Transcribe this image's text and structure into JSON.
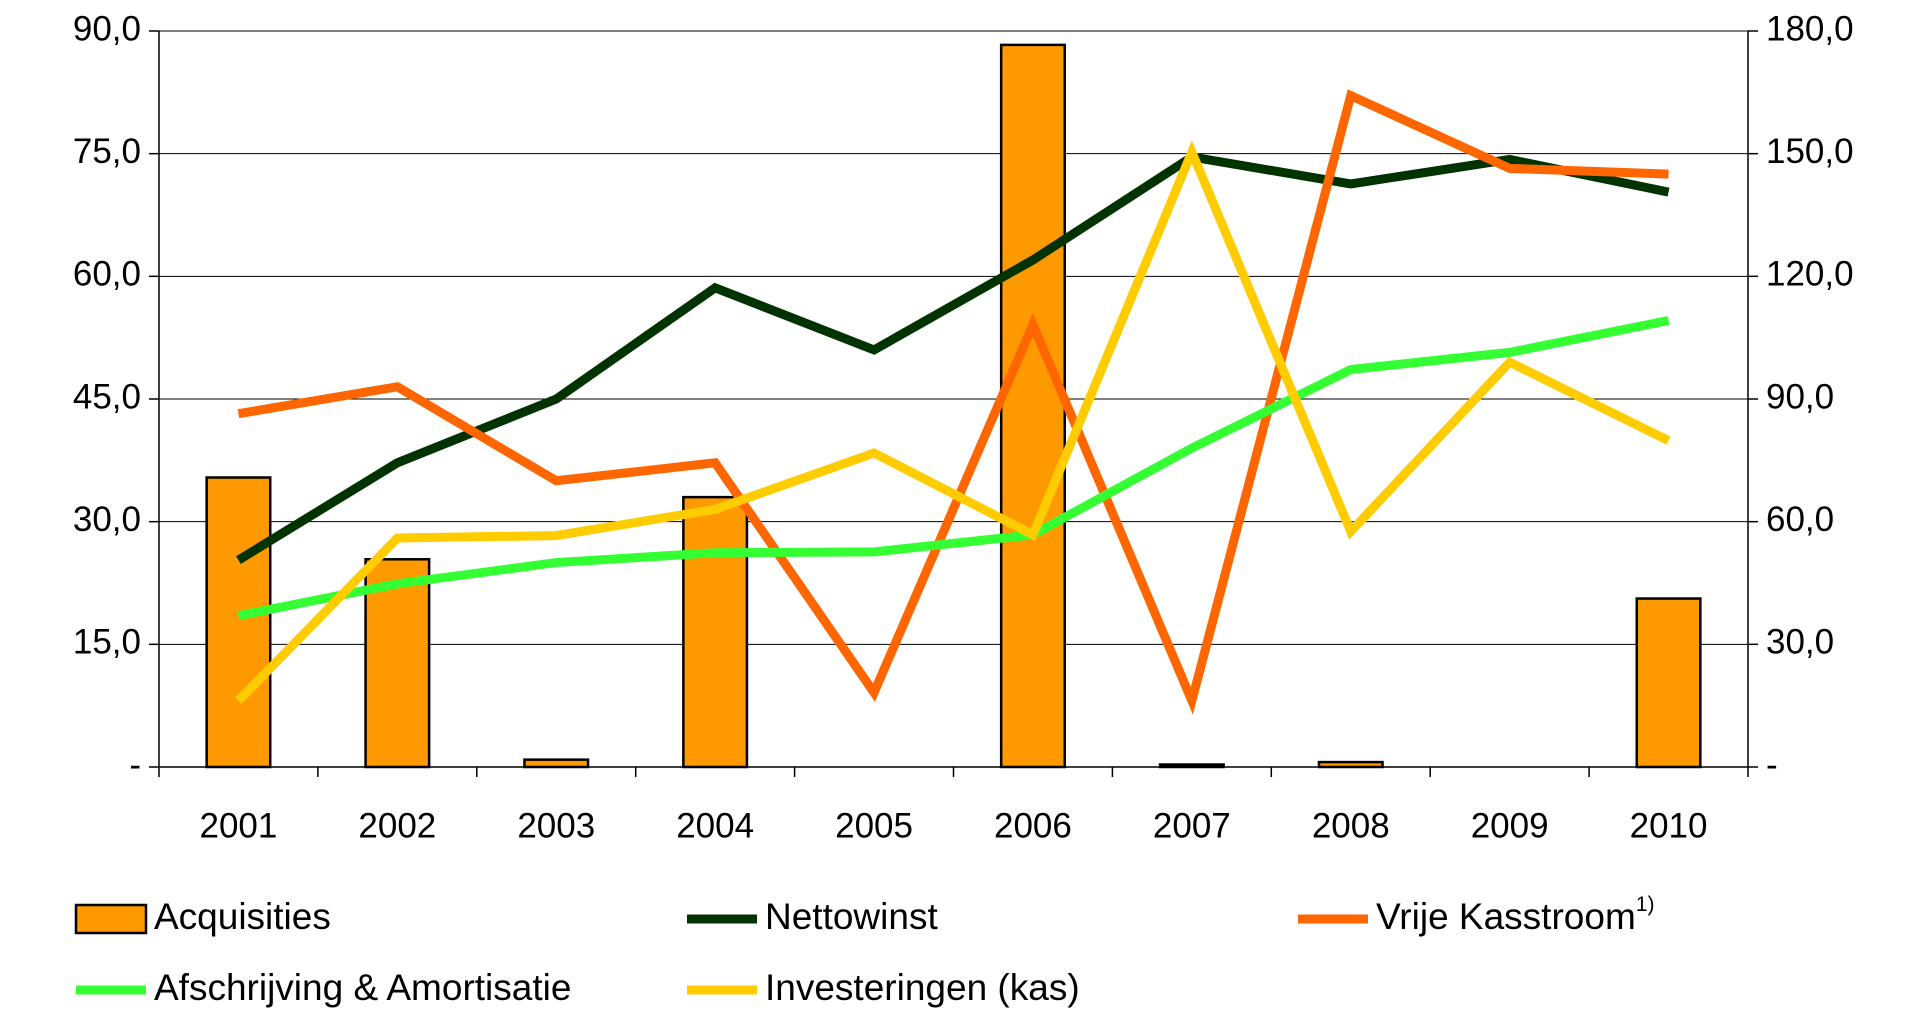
{
  "chart_data": {
    "type": "combo",
    "categories": [
      "2001",
      "2002",
      "2003",
      "2004",
      "2005",
      "2006",
      "2007",
      "2008",
      "2009",
      "2010"
    ],
    "series": [
      {
        "name": "Acquisities",
        "type": "bar",
        "color": "#ff9900",
        "values": [
          35.4,
          25.4,
          0.9,
          33.0,
          0,
          88.3,
          0.3,
          0.6,
          0,
          20.6
        ]
      },
      {
        "name": "Nettowinst",
        "type": "line",
        "color": "#003300",
        "values": [
          25.3,
          37.2,
          45.0,
          58.6,
          51.0,
          62.0,
          74.6,
          71.3,
          74.3,
          70.3
        ]
      },
      {
        "name": "Vrije Kasstroom",
        "type": "line",
        "color": "#ff6600",
        "values": [
          43.2,
          46.5,
          35.0,
          37.2,
          9.1,
          54.1,
          8.1,
          82.1,
          73.2,
          72.5
        ]
      },
      {
        "name": "Afschrijving & Amortisatie",
        "type": "line",
        "color": "#33ff33",
        "values": [
          18.5,
          22.4,
          25.0,
          26.2,
          26.3,
          28.4,
          39.0,
          48.6,
          50.7,
          54.6
        ]
      },
      {
        "name": "Investeringen (kas)",
        "type": "line",
        "color": "#ffcc00",
        "values": [
          8.1,
          28.0,
          28.3,
          31.5,
          38.4,
          28.4,
          75.2,
          28.8,
          49.5,
          39.9
        ]
      }
    ],
    "legend_note": "1)",
    "ylim": [
      0,
      90
    ],
    "yticks": [
      {
        "value": 0,
        "label": "-"
      },
      {
        "value": 15,
        "label": "15,0"
      },
      {
        "value": 30,
        "label": "30,0"
      },
      {
        "value": 45,
        "label": "45,0"
      },
      {
        "value": 60,
        "label": "60,0"
      },
      {
        "value": 75,
        "label": "75,0"
      },
      {
        "value": 90,
        "label": "90,0"
      }
    ],
    "y2lim": [
      0,
      180
    ],
    "y2ticks": [
      {
        "value": 0,
        "label": "-"
      },
      {
        "value": 30,
        "label": "30,0"
      },
      {
        "value": 60,
        "label": "60,0"
      },
      {
        "value": 90,
        "label": "90,0"
      },
      {
        "value": 120,
        "label": "120,0"
      },
      {
        "value": 150,
        "label": "150,0"
      },
      {
        "value": 180,
        "label": "180,0"
      }
    ],
    "grid": true
  }
}
